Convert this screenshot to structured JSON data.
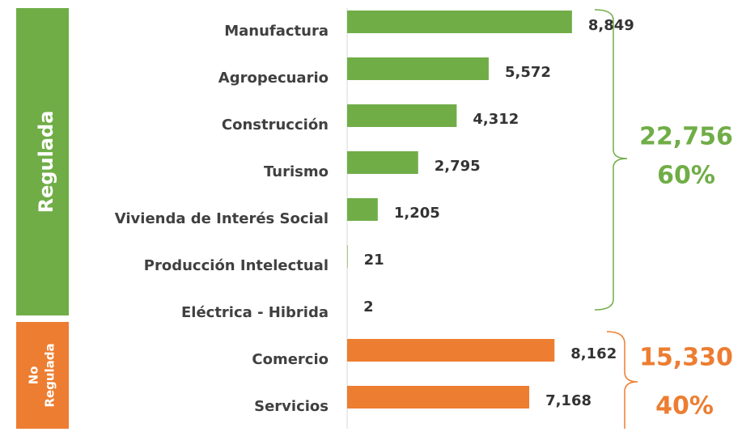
{
  "chart_data": {
    "type": "bar",
    "orientation": "horizontal",
    "categories": [
      "Manufactura",
      "Agropecuario",
      "Construcción",
      "Turismo",
      "Vivienda de Interés Social",
      "Producción Intelectual",
      "Eléctrica - Hibrida",
      "Comercio",
      "Servicios"
    ],
    "values": [
      8849,
      5572,
      4312,
      2795,
      1205,
      21,
      2,
      8162,
      7168
    ],
    "value_labels": [
      "8,849",
      "5,572",
      "4,312",
      "2,795",
      "1,205",
      "21",
      "2",
      "8,162",
      "7,168"
    ],
    "colors": [
      "#70ad47",
      "#70ad47",
      "#70ad47",
      "#70ad47",
      "#70ad47",
      "#70ad47",
      "#70ad47",
      "#ed7d31",
      "#ed7d31"
    ],
    "xlim": [
      0,
      10000
    ],
    "groups": [
      {
        "label_lines": [
          "Regulada"
        ],
        "total": "22,756",
        "share": "60%",
        "color": "#70ad47"
      },
      {
        "label_lines": [
          "No",
          "Regulada"
        ],
        "total": "15,330",
        "share": "40%",
        "color": "#ed7d31"
      }
    ]
  }
}
